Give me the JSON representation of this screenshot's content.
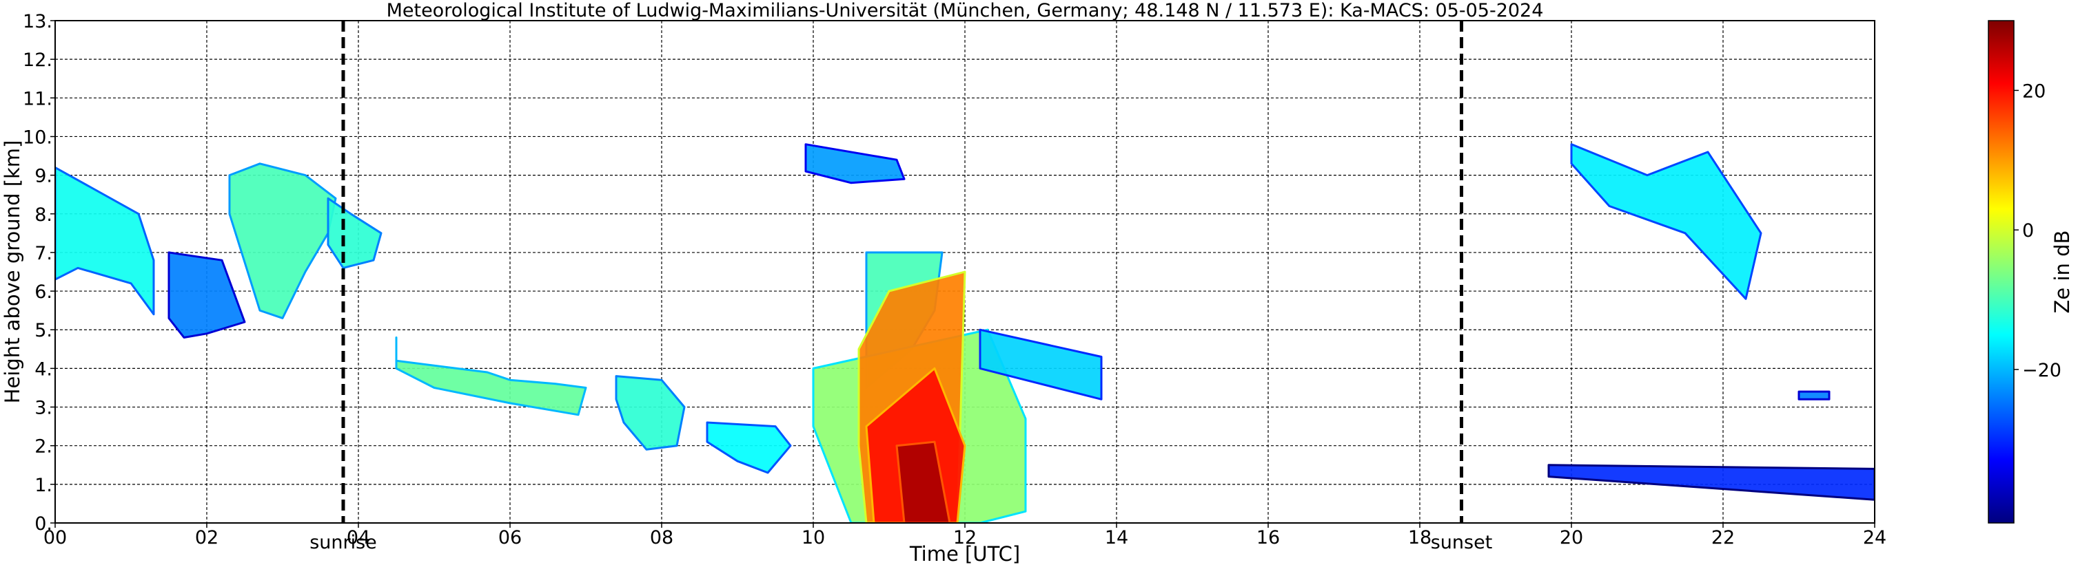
{
  "chart_data": {
    "type": "heatmap",
    "title": "Meteorological Institute of Ludwig-Maximilians-Universität (München, Germany; 48.148 N / 11.573 E):    Ka-MACS: 05-05-2024",
    "xlabel": "Time [UTC]",
    "ylabel": "Height above ground [km]",
    "colorbar_label": "Ze in dB",
    "xlim": [
      0,
      24
    ],
    "ylim": [
      0,
      13
    ],
    "x_ticks": [
      0,
      2,
      4,
      6,
      8,
      10,
      12,
      14,
      16,
      18,
      20,
      22,
      24
    ],
    "x_tick_labels": [
      "00",
      "02",
      "04",
      "06",
      "08",
      "10",
      "12",
      "14",
      "16",
      "18",
      "20",
      "22",
      "24"
    ],
    "y_ticks": [
      0,
      1,
      2,
      3,
      4,
      5,
      6,
      7,
      8,
      9,
      10,
      11,
      12,
      13
    ],
    "y_tick_labels": [
      "0.",
      "1.",
      "2.",
      "3.",
      "4.",
      "5.",
      "6.",
      "7.",
      "8.",
      "9.",
      "10.",
      "11.",
      "12.",
      "13."
    ],
    "colorbar_range": [
      -42,
      30
    ],
    "colorbar_ticks": [
      20,
      0,
      -20
    ],
    "colorbar_tick_labels": [
      "20",
      "0",
      "−20"
    ],
    "grid": true,
    "colormap": "jet",
    "annotations": [
      {
        "label": "sunrise",
        "x": 3.8
      },
      {
        "label": "sunset",
        "x": 18.55
      }
    ],
    "echo_regions": [
      {
        "x": [
          0.0,
          1.1,
          1.3,
          1.3,
          1.0,
          0.3,
          0.0
        ],
        "y": [
          9.2,
          8.0,
          6.8,
          5.4,
          6.2,
          6.6,
          6.3
        ],
        "ze": -14
      },
      {
        "x": [
          1.5,
          2.2,
          2.5,
          2.0,
          1.7,
          1.5
        ],
        "y": [
          7.0,
          6.8,
          5.2,
          4.9,
          4.8,
          5.3
        ],
        "ze": -24
      },
      {
        "x": [
          2.3,
          2.7,
          3.3,
          3.7,
          3.6,
          3.3,
          3.0,
          2.7,
          2.3
        ],
        "y": [
          9.0,
          9.3,
          9.0,
          8.4,
          7.5,
          6.5,
          5.3,
          5.5,
          8.0
        ],
        "ze": -10
      },
      {
        "x": [
          3.6,
          3.9,
          4.3,
          4.2,
          3.8,
          3.6
        ],
        "y": [
          8.4,
          8.0,
          7.5,
          6.8,
          6.6,
          7.2
        ],
        "ze": -12
      },
      {
        "x": [
          4.5,
          4.5,
          5.7,
          6.0,
          6.6,
          7.0,
          6.9,
          6.0,
          5.0,
          4.5
        ],
        "y": [
          4.8,
          4.2,
          3.9,
          3.7,
          3.6,
          3.5,
          2.8,
          3.1,
          3.5,
          4.0
        ],
        "ze": -8
      },
      {
        "x": [
          7.4,
          8.0,
          8.3,
          8.2,
          7.8,
          7.5,
          7.4
        ],
        "y": [
          3.8,
          3.7,
          3.0,
          2.0,
          1.9,
          2.6,
          3.2
        ],
        "ze": -12
      },
      {
        "x": [
          8.6,
          9.5,
          9.7,
          9.4,
          9.0,
          8.6
        ],
        "y": [
          2.6,
          2.5,
          2.0,
          1.3,
          1.6,
          2.1
        ],
        "ze": -15
      },
      {
        "x": [
          10.7,
          11.7,
          11.6,
          11.3,
          11.0,
          10.7
        ],
        "y": [
          7.0,
          7.0,
          5.5,
          4.5,
          4.0,
          3.5
        ],
        "ze": -10
      },
      {
        "x": [
          10.0,
          12.3,
          12.8,
          12.8,
          12.2,
          10.5,
          10.0
        ],
        "y": [
          4.0,
          5.0,
          2.7,
          0.3,
          0.0,
          0.0,
          2.5
        ],
        "ze": -5
      },
      {
        "x": [
          10.6,
          11.0,
          12.0,
          11.9,
          11.5,
          10.7,
          10.6
        ],
        "y": [
          4.5,
          6.0,
          6.5,
          0.0,
          0.0,
          0.0,
          2.0
        ],
        "ze": 12
      },
      {
        "x": [
          10.7,
          11.6,
          12.0,
          11.9,
          10.8
        ],
        "y": [
          2.5,
          4.0,
          2.0,
          0.0,
          0.0
        ],
        "ze": 20
      },
      {
        "x": [
          11.1,
          11.6,
          11.8,
          11.7,
          11.2
        ],
        "y": [
          2.0,
          2.1,
          0.0,
          0.0,
          0.0
        ],
        "ze": 27
      },
      {
        "x": [
          12.2,
          13.8,
          13.8,
          12.2
        ],
        "y": [
          5.0,
          4.3,
          3.2,
          4.0
        ],
        "ze": -18
      },
      {
        "x": [
          9.9,
          11.1,
          11.2,
          10.5,
          9.9
        ],
        "y": [
          9.8,
          9.4,
          8.9,
          8.8,
          9.1
        ],
        "ze": -22
      },
      {
        "x": [
          20.0,
          21.0,
          21.8,
          22.5,
          22.3,
          21.5,
          20.5,
          20.0
        ],
        "y": [
          9.8,
          9.0,
          9.6,
          7.5,
          5.8,
          7.5,
          8.2,
          9.3
        ],
        "ze": -16
      },
      {
        "x": [
          23.0,
          23.4,
          23.4,
          23.0
        ],
        "y": [
          3.4,
          3.4,
          3.2,
          3.2
        ],
        "ze": -24
      },
      {
        "x": [
          19.7,
          24.0,
          24.0,
          19.7
        ],
        "y": [
          1.5,
          1.4,
          0.6,
          1.2
        ],
        "ze": -30
      }
    ]
  }
}
